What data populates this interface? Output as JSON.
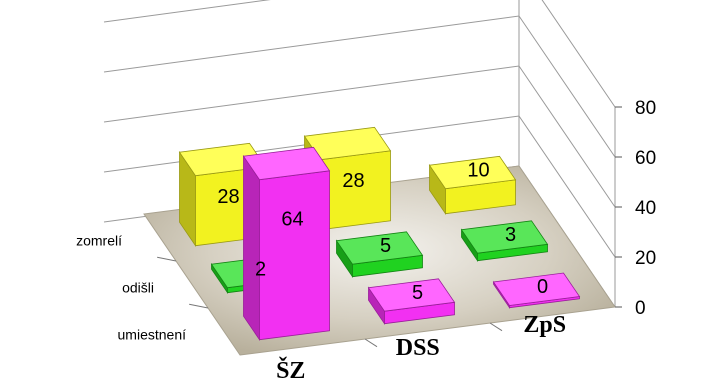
{
  "chart_data": {
    "type": "bar",
    "three_d": true,
    "title": "",
    "categories": [
      "ŠZ",
      "DSS",
      "ZpS"
    ],
    "series": [
      {
        "name": "umiestnení",
        "color": "#ff33ff",
        "values": [
          64,
          5,
          0
        ]
      },
      {
        "name": "odišli",
        "color": "#22dd22",
        "values": [
          2,
          5,
          3
        ]
      },
      {
        "name": "zomrelí",
        "color": "#ffff22",
        "values": [
          28,
          28,
          10
        ]
      }
    ],
    "z_ticks": [
      "0",
      "20",
      "40",
      "60",
      "80"
    ],
    "zlim": [
      0,
      80
    ],
    "grid": true,
    "floor_color": "#c9c3b1"
  }
}
